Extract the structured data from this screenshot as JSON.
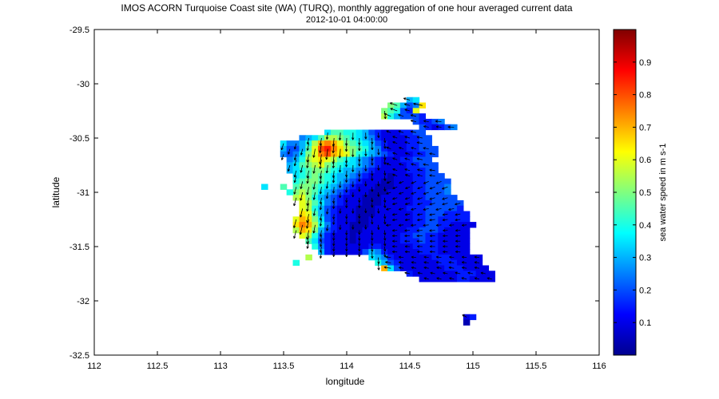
{
  "chart_data": {
    "type": "heatmap",
    "title": "IMOS ACORN Turquoise Coast site (WA) (TURQ), monthly aggregation of one hour averaged current data",
    "subtitle": "2012-10-01 04:00:00",
    "xlabel": "longitude",
    "ylabel": "latitude",
    "xlim": [
      112,
      116
    ],
    "ylim": [
      -32.5,
      -29.5
    ],
    "x_ticks": [
      112,
      112.5,
      113,
      113.5,
      114,
      114.5,
      115,
      115.5,
      116
    ],
    "y_ticks": [
      -32.5,
      -32,
      -31.5,
      -31,
      -30.5,
      -30,
      -29.5
    ],
    "colorbar": {
      "label": "sea water speed in m s-1",
      "range": [
        0,
        1
      ],
      "ticks": [
        0.1,
        0.2,
        0.3,
        0.4,
        0.5,
        0.6,
        0.7,
        0.8,
        0.9
      ]
    },
    "field_description": "gridded surface current speed with direction arrows; strongest (~0.6-0.8) near 113.8-114.3E, -30.6 to -30.8 and 113.6-113.8E, -31.3; mostly 0.05-0.2 elsewhere",
    "grid": {
      "lon_min": 113.45,
      "lon_step": 0.05,
      "lat_max": -30.1,
      "lat_step": 0.05,
      "rows": [
        {
          "lat": -30.15,
          "lon_start": 114.5,
          "speeds": [
            0.3,
            0.35
          ]
        },
        {
          "lat": -30.2,
          "lon_start": 114.35,
          "speeds": [
            0.5,
            0.45,
            0.3,
            0.2,
            0.25,
            0.65
          ]
        },
        {
          "lat": -30.25,
          "lon_start": 114.3,
          "speeds": [
            0.5,
            0.45,
            0.4,
            0.2,
            0.15,
            0.6
          ]
        },
        {
          "lat": -30.3,
          "lon_start": 114.3,
          "speeds": [
            0.55,
            0.4,
            0.3,
            0.2,
            0.2,
            0.2,
            0.15
          ]
        },
        {
          "lat": -30.35,
          "lon_start": 114.55,
          "speeds": [
            0.2,
            0.15,
            0.15,
            0.2,
            0.25
          ]
        },
        {
          "lat": -30.4,
          "lon_start": 114.6,
          "speeds": [
            0.2,
            0.15,
            0.1,
            0.15,
            0.2,
            0.25
          ]
        },
        {
          "lat": -30.45,
          "lon_start": 113.85,
          "speeds": [
            0.35,
            0.45,
            0.45,
            0.4,
            0.4,
            0.35,
            0.3,
            0.2,
            0.15,
            0.1,
            0.1,
            0.1,
            0.15,
            0.15,
            0.2,
            0.2
          ]
        },
        {
          "lat": -30.5,
          "lon_start": 113.65,
          "speeds": [
            0.25,
            0.3,
            0.35,
            0.45,
            0.55,
            0.55,
            0.5,
            0.45,
            0.4,
            0.35,
            0.3,
            0.25,
            0.15,
            0.1,
            0.1,
            0.1,
            0.1,
            0.15,
            0.15,
            0.2,
            0.2
          ]
        },
        {
          "lat": -30.55,
          "lon_start": 113.5,
          "speeds": [
            0.35,
            0.25,
            0.25,
            0.3,
            0.4,
            0.55,
            0.7,
            0.75,
            0.7,
            0.6,
            0.5,
            0.45,
            0.4,
            0.35,
            0.3,
            0.2,
            0.15,
            0.1,
            0.1,
            0.1,
            0.15,
            0.15,
            0.2,
            0.2
          ]
        },
        {
          "lat": -30.6,
          "lon_start": 113.5,
          "speeds": [
            0.3,
            0.2,
            0.2,
            0.3,
            0.45,
            0.6,
            0.8,
            0.85,
            0.75,
            0.65,
            0.55,
            0.5,
            0.45,
            0.4,
            0.3,
            0.25,
            0.15,
            0.1,
            0.1,
            0.1,
            0.15,
            0.15,
            0.2,
            0.2,
            0.2
          ]
        },
        {
          "lat": -30.65,
          "lon_start": 113.5,
          "speeds": [
            0.25,
            0.2,
            0.25,
            0.35,
            0.5,
            0.6,
            0.75,
            0.8,
            0.7,
            0.65,
            0.6,
            0.5,
            0.4,
            0.35,
            0.3,
            0.25,
            0.2,
            0.15,
            0.1,
            0.1,
            0.1,
            0.15,
            0.15,
            0.2,
            0.2
          ]
        },
        {
          "lat": -30.7,
          "lon_start": 113.55,
          "speeds": [
            0.25,
            0.3,
            0.4,
            0.55,
            0.6,
            0.65,
            0.6,
            0.55,
            0.45,
            0.4,
            0.35,
            0.3,
            0.25,
            0.2,
            0.15,
            0.1,
            0.1,
            0.1,
            0.15,
            0.15,
            0.2,
            0.2,
            0.2
          ]
        },
        {
          "lat": -30.75,
          "lon_start": 113.55,
          "speeds": [
            0.3,
            0.35,
            0.45,
            0.5,
            0.55,
            0.6,
            0.5,
            0.45,
            0.4,
            0.35,
            0.35,
            0.3,
            0.25,
            0.2,
            0.15,
            0.1,
            0.1,
            0.1,
            0.1,
            0.15,
            0.15,
            0.2,
            0.2,
            0.2
          ]
        },
        {
          "lat": -30.8,
          "lon_start": 113.55,
          "speeds": [
            0.3,
            0.35,
            0.4,
            0.45,
            0.5,
            0.5,
            0.45,
            0.4,
            0.35,
            0.3,
            0.3,
            0.25,
            0.2,
            0.15,
            0.1,
            0.1,
            0.1,
            0.1,
            0.1,
            0.15,
            0.15,
            0.15,
            0.2,
            0.2
          ]
        },
        {
          "lat": -30.85,
          "lon_start": 113.6,
          "speeds": [
            0.35,
            0.4,
            0.45,
            0.5,
            0.45,
            0.4,
            0.35,
            0.3,
            0.3,
            0.25,
            0.2,
            0.15,
            0.1,
            0.1,
            0.1,
            0.05,
            0.1,
            0.1,
            0.1,
            0.15,
            0.15,
            0.2,
            0.2,
            0.2
          ]
        },
        {
          "lat": -30.9,
          "lon_start": 113.6,
          "speeds": [
            0.4,
            0.45,
            0.5,
            0.5,
            0.45,
            0.4,
            0.35,
            0.3,
            0.25,
            0.2,
            0.15,
            0.1,
            0.1,
            0.1,
            0.05,
            0.05,
            0.1,
            0.1,
            0.1,
            0.15,
            0.15,
            0.2,
            0.2,
            0.2,
            0.2
          ]
        },
        {
          "lat": -30.95,
          "lon_start": 113.6,
          "speeds": [
            0.45,
            0.5,
            0.5,
            0.45,
            0.4,
            0.35,
            0.3,
            0.25,
            0.2,
            0.15,
            0.1,
            0.1,
            0.1,
            0.05,
            0.05,
            0.05,
            0.1,
            0.1,
            0.1,
            0.15,
            0.15,
            0.2,
            0.2,
            0.2,
            0.25
          ]
        },
        {
          "lat": -31.0,
          "lon_start": 113.6,
          "speeds": [
            0.5,
            0.55,
            0.5,
            0.45,
            0.35,
            0.3,
            0.25,
            0.2,
            0.15,
            0.1,
            0.1,
            0.1,
            0.05,
            0.05,
            0.05,
            0.1,
            0.1,
            0.1,
            0.1,
            0.15,
            0.15,
            0.2,
            0.2,
            0.2,
            0.25
          ]
        },
        {
          "lat": -31.05,
          "lon_start": 113.6,
          "speeds": [
            0.55,
            0.6,
            0.5,
            0.4,
            0.3,
            0.25,
            0.2,
            0.15,
            0.1,
            0.1,
            0.1,
            0.05,
            0.05,
            0.05,
            0.1,
            0.1,
            0.1,
            0.1,
            0.1,
            0.15,
            0.15,
            0.2,
            0.2,
            0.2,
            0.2,
            0.2
          ]
        },
        {
          "lat": -31.1,
          "lon_start": 113.65,
          "speeds": [
            0.6,
            0.55,
            0.45,
            0.35,
            0.25,
            0.2,
            0.15,
            0.1,
            0.1,
            0.1,
            0.05,
            0.05,
            0.05,
            0.1,
            0.1,
            0.1,
            0.1,
            0.1,
            0.15,
            0.15,
            0.15,
            0.2,
            0.2,
            0.2,
            0.2,
            0.2
          ]
        },
        {
          "lat": -31.15,
          "lon_start": 113.65,
          "speeds": [
            0.6,
            0.55,
            0.4,
            0.3,
            0.2,
            0.15,
            0.1,
            0.1,
            0.1,
            0.05,
            0.05,
            0.05,
            0.1,
            0.1,
            0.1,
            0.1,
            0.1,
            0.15,
            0.15,
            0.15,
            0.2,
            0.2,
            0.2,
            0.2,
            0.2,
            0.15
          ]
        },
        {
          "lat": -31.2,
          "lon_start": 113.65,
          "speeds": [
            0.65,
            0.6,
            0.45,
            0.3,
            0.2,
            0.15,
            0.1,
            0.1,
            0.1,
            0.05,
            0.05,
            0.05,
            0.1,
            0.1,
            0.1,
            0.1,
            0.1,
            0.1,
            0.15,
            0.15,
            0.2,
            0.2,
            0.2,
            0.15,
            0.15,
            0.15,
            0.15
          ]
        },
        {
          "lat": -31.25,
          "lon_start": 113.6,
          "speeds": [
            0.6,
            0.7,
            0.65,
            0.5,
            0.35,
            0.2,
            0.15,
            0.1,
            0.1,
            0.1,
            0.05,
            0.05,
            0.1,
            0.1,
            0.1,
            0.1,
            0.1,
            0.1,
            0.1,
            0.15,
            0.15,
            0.2,
            0.2,
            0.15,
            0.15,
            0.15,
            0.15,
            0.15
          ]
        },
        {
          "lat": -31.3,
          "lon_start": 113.6,
          "speeds": [
            0.65,
            0.75,
            0.7,
            0.55,
            0.4,
            0.25,
            0.15,
            0.1,
            0.1,
            0.05,
            0.05,
            0.05,
            0.1,
            0.1,
            0.1,
            0.1,
            0.1,
            0.1,
            0.1,
            0.15,
            0.15,
            0.2,
            0.2,
            0.15,
            0.15,
            0.1,
            0.1,
            0.1,
            0.1
          ]
        },
        {
          "lat": -31.35,
          "lon_start": 113.6,
          "speeds": [
            0.55,
            0.7,
            0.65,
            0.5,
            0.3,
            0.2,
            0.15,
            0.1,
            0.1,
            0.05,
            0.05,
            0.1,
            0.1,
            0.1,
            0.1,
            0.1,
            0.1,
            0.1,
            0.15,
            0.15,
            0.2,
            0.2,
            0.2,
            0.15,
            0.1,
            0.1,
            0.1,
            0.1
          ]
        },
        {
          "lat": -31.4,
          "lon_start": 113.65,
          "speeds": [
            0.6,
            0.55,
            0.4,
            0.25,
            0.15,
            0.1,
            0.1,
            0.1,
            0.05,
            0.1,
            0.1,
            0.1,
            0.1,
            0.1,
            0.1,
            0.1,
            0.15,
            0.15,
            0.2,
            0.2,
            0.15,
            0.15,
            0.1,
            0.1,
            0.1,
            0.1,
            0.1
          ]
        },
        {
          "lat": -31.45,
          "lon_start": 113.7,
          "speeds": [
            0.45,
            0.35,
            0.2,
            0.15,
            0.1,
            0.1,
            0.1,
            0.05,
            0.1,
            0.1,
            0.1,
            0.1,
            0.1,
            0.1,
            0.1,
            0.15,
            0.15,
            0.15,
            0.2,
            0.15,
            0.15,
            0.1,
            0.1,
            0.1,
            0.1,
            0.1
          ]
        },
        {
          "lat": -31.5,
          "lon_start": 113.75,
          "speeds": [
            0.4,
            0.25,
            0.15,
            0.1,
            0.1,
            0.1,
            0.1,
            0.1,
            0.1,
            0.15,
            0.15,
            0.1,
            0.1,
            0.1,
            0.1,
            0.1,
            0.15,
            0.15,
            0.15,
            0.15,
            0.1,
            0.1,
            0.1,
            0.1,
            0.1
          ]
        },
        {
          "lat": -31.55,
          "lon_start": 113.8,
          "speeds": [
            0.3,
            0.15,
            0.1,
            0.1,
            0.1,
            0.1,
            0.1,
            0.2,
            0.3,
            0.25,
            0.15,
            0.1,
            0.1,
            0.1,
            0.1,
            0.1,
            0.15,
            0.15,
            0.15,
            0.1,
            0.1,
            0.1,
            0.1,
            0.1
          ]
        },
        {
          "lat": -31.6,
          "lon_start": 114.2,
          "speeds": [
            0.35,
            0.3,
            0.25,
            0.15,
            0.1,
            0.1,
            0.1,
            0.1,
            0.1,
            0.1,
            0.15,
            0.15,
            0.15,
            0.1,
            0.1,
            0.1,
            0.1,
            0.1
          ]
        },
        {
          "lat": -31.65,
          "lon_start": 114.25,
          "speeds": [
            0.4,
            0.3,
            0.2,
            0.15,
            0.1,
            0.1,
            0.1,
            0.1,
            0.1,
            0.1,
            0.15,
            0.15,
            0.15,
            0.1,
            0.1,
            0.1,
            0.1
          ]
        },
        {
          "lat": -31.7,
          "lon_start": 114.3,
          "speeds": [
            0.7,
            0.35,
            0.2,
            0.1,
            0.1,
            0.1,
            0.1,
            0.1,
            0.1,
            0.1,
            0.15,
            0.15,
            0.15,
            0.1,
            0.1,
            0.1,
            0.1
          ]
        },
        {
          "lat": -31.75,
          "lon_start": 114.5,
          "speeds": [
            0.15,
            0.1,
            0.1,
            0.1,
            0.1,
            0.1,
            0.1,
            0.1,
            0.15,
            0.15,
            0.15,
            0.1,
            0.1,
            0.1
          ]
        },
        {
          "lat": -31.8,
          "lon_start": 114.6,
          "speeds": [
            0.1,
            0.1,
            0.1,
            0.1,
            0.1,
            0.1,
            0.15,
            0.15,
            0.1,
            0.1,
            0.1,
            0.1
          ]
        },
        {
          "lat": -32.15,
          "lon_start": 114.95,
          "speeds": [
            0.1,
            0.15
          ]
        },
        {
          "lat": -32.2,
          "lon_start": 114.95,
          "speeds": [
            0.05
          ]
        }
      ],
      "isolated": [
        {
          "lon": 113.5,
          "lat": -30.95,
          "speed": 0.45
        },
        {
          "lon": 113.55,
          "lat": -31.0,
          "speed": 0.4
        },
        {
          "lon": 113.7,
          "lat": -31.6,
          "speed": 0.55
        },
        {
          "lon": 113.6,
          "lat": -31.65,
          "speed": 0.4
        },
        {
          "lon": 113.35,
          "lat": -30.95,
          "speed": 0.35
        }
      ]
    }
  }
}
